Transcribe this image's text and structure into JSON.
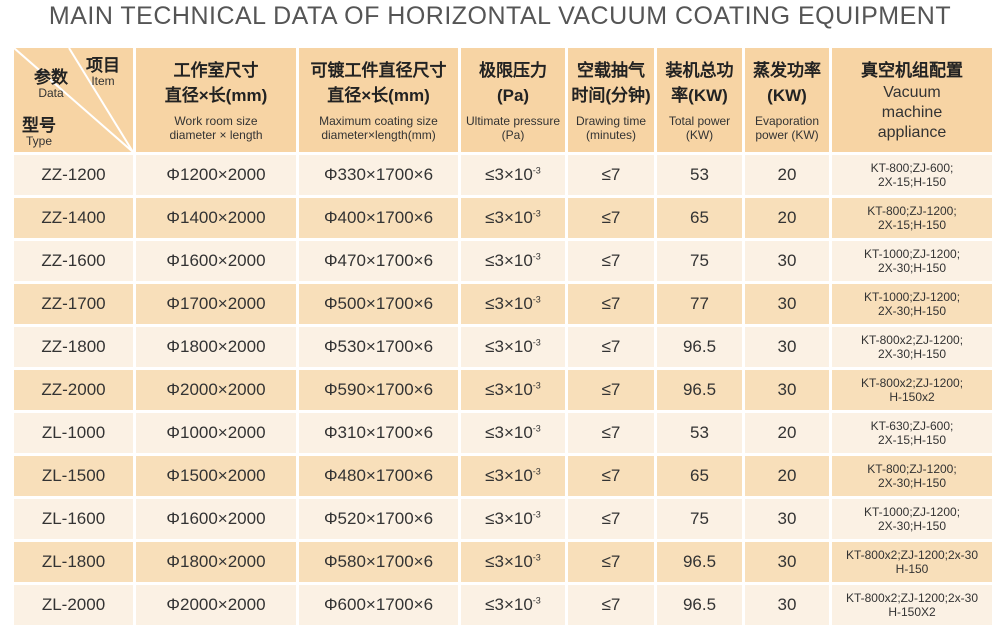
{
  "title": "MAIN TECHNICAL DATA OF HORIZONTAL VACUUM COATING EQUIPMENT",
  "corner": {
    "item_zh": "项目",
    "item_en": "Item",
    "data_zh": "参数",
    "data_en": "Data",
    "type_zh": "型号",
    "type_en": "Type"
  },
  "columns": [
    {
      "zh1": "工作室尺寸",
      "zh2": "直径×长(mm)",
      "en1": "Work room size",
      "en2": "diameter × length"
    },
    {
      "zh1": "可镀工件直径尺寸",
      "zh2": "直径×长(mm)",
      "en1": "Maximum coating size",
      "en2": "diameter×length(mm)"
    },
    {
      "zh1": "极限压力",
      "zh2": "(Pa)",
      "en1": "Ultimate pressure",
      "en2": "(Pa)"
    },
    {
      "zh1": "空载抽气",
      "zh2": "时间(分钟)",
      "en1": "Drawing time",
      "en2": "(minutes)"
    },
    {
      "zh1": "装机总功",
      "zh2": "率(KW)",
      "en1": "Total power",
      "en2": "(KW)"
    },
    {
      "zh1": "蒸发功率",
      "zh2": "(KW)",
      "en1": "Evaporation",
      "en2": "power (KW)"
    },
    {
      "zh1": "真空机组配置",
      "zh2": "",
      "en1": "Vacuum",
      "en2": "machine",
      "en3": "appliance"
    }
  ],
  "pressure_base": "≤3×10",
  "pressure_exp": "-3",
  "rows": [
    {
      "type": "ZZ-1200",
      "room": "Φ1200×2000",
      "coat": "Φ330×1700×6",
      "time": "≤7",
      "power": "53",
      "evap": "20",
      "cfg1": "KT-800;ZJ-600;",
      "cfg2": "2X-15;H-150"
    },
    {
      "type": "ZZ-1400",
      "room": "Φ1400×2000",
      "coat": "Φ400×1700×6",
      "time": "≤7",
      "power": "65",
      "evap": "20",
      "cfg1": "KT-800;ZJ-1200;",
      "cfg2": "2X-15;H-150"
    },
    {
      "type": "ZZ-1600",
      "room": "Φ1600×2000",
      "coat": "Φ470×1700×6",
      "time": "≤7",
      "power": "75",
      "evap": "30",
      "cfg1": "KT-1000;ZJ-1200;",
      "cfg2": "2X-30;H-150"
    },
    {
      "type": "ZZ-1700",
      "room": "Φ1700×2000",
      "coat": "Φ500×1700×6",
      "time": "≤7",
      "power": "77",
      "evap": "30",
      "cfg1": "KT-1000;ZJ-1200;",
      "cfg2": "2X-30;H-150"
    },
    {
      "type": "ZZ-1800",
      "room": "Φ1800×2000",
      "coat": "Φ530×1700×6",
      "time": "≤7",
      "power": "96.5",
      "evap": "30",
      "cfg1": "KT-800x2;ZJ-1200;",
      "cfg2": "2X-30;H-150"
    },
    {
      "type": "ZZ-2000",
      "room": "Φ2000×2000",
      "coat": "Φ590×1700×6",
      "time": "≤7",
      "power": "96.5",
      "evap": "30",
      "cfg1": "KT-800x2;ZJ-1200;",
      "cfg2": "H-150x2"
    },
    {
      "type": "ZL-1000",
      "room": "Φ1000×2000",
      "coat": "Φ310×1700×6",
      "time": "≤7",
      "power": "53",
      "evap": "20",
      "cfg1": "KT-630;ZJ-600;",
      "cfg2": "2X-15;H-150"
    },
    {
      "type": "ZL-1500",
      "room": "Φ1500×2000",
      "coat": "Φ480×1700×6",
      "time": "≤7",
      "power": "65",
      "evap": "20",
      "cfg1": "KT-800;ZJ-1200;",
      "cfg2": "2X-30;H-150"
    },
    {
      "type": "ZL-1600",
      "room": "Φ1600×2000",
      "coat": "Φ520×1700×6",
      "time": "≤7",
      "power": "75",
      "evap": "30",
      "cfg1": "KT-1000;ZJ-1200;",
      "cfg2": "2X-30;H-150"
    },
    {
      "type": "ZL-1800",
      "room": "Φ1800×2000",
      "coat": "Φ580×1700×6",
      "time": "≤7",
      "power": "96.5",
      "evap": "30",
      "cfg1": "KT-800x2;ZJ-1200;2x-30",
      "cfg2": "H-150"
    },
    {
      "type": "ZL-2000",
      "room": "Φ2000×2000",
      "coat": "Φ600×1700×6",
      "time": "≤7",
      "power": "96.5",
      "evap": "30",
      "cfg1": "KT-800x2;ZJ-1200;2x-30",
      "cfg2": "H-150X2"
    }
  ]
}
